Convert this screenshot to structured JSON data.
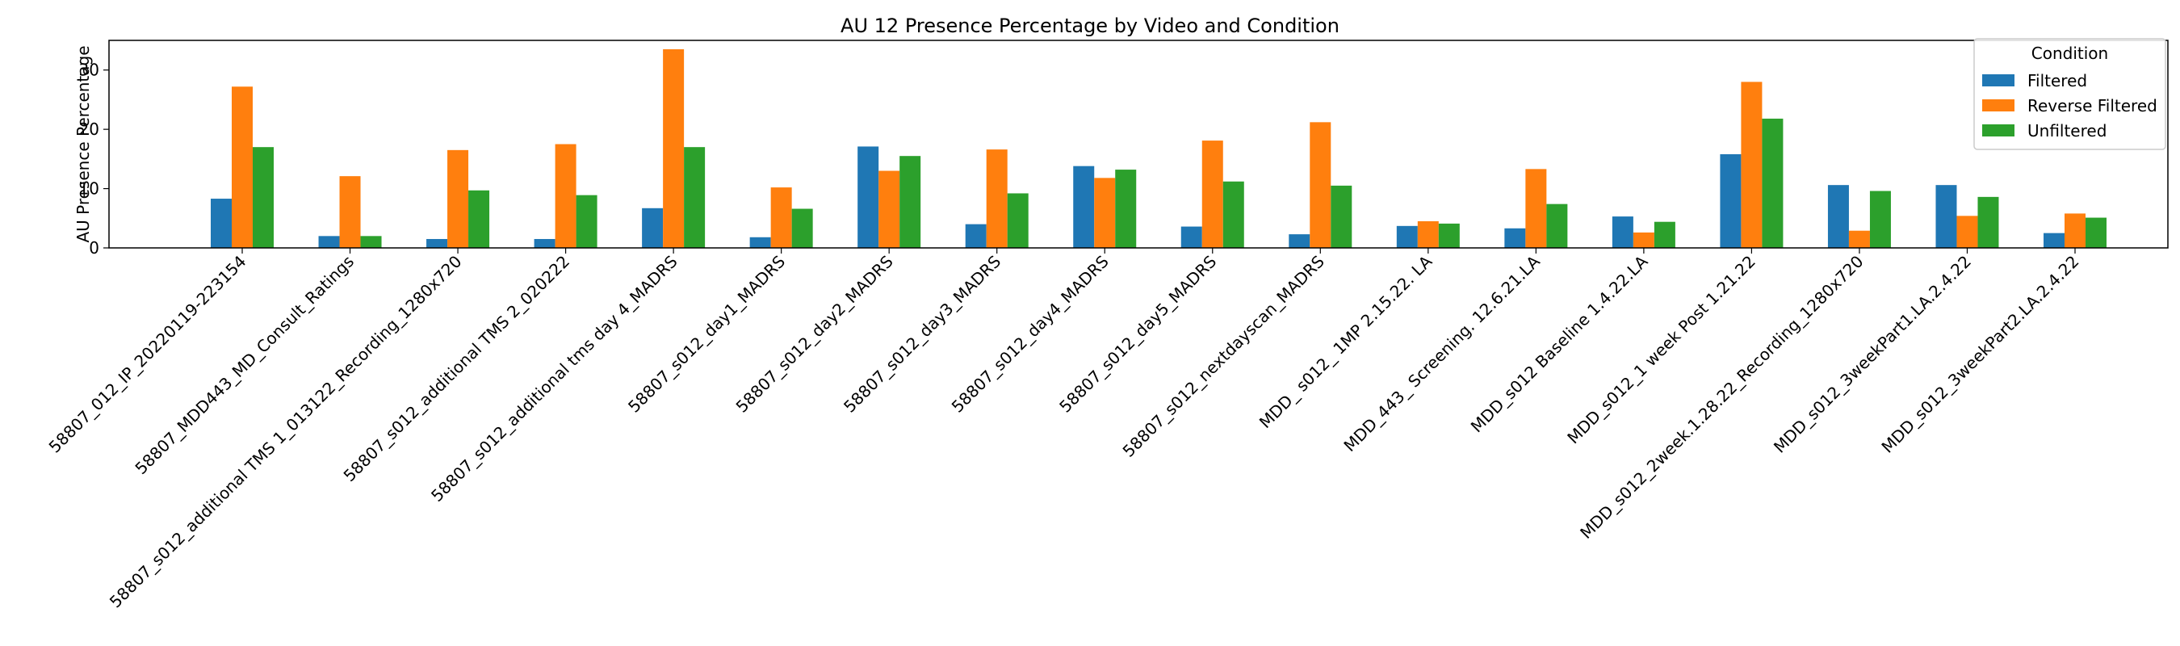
{
  "chart_data": {
    "type": "bar",
    "title": "AU 12 Presence Percentage by Video and Condition",
    "xlabel": "",
    "ylabel": "AU Presence Percentage",
    "ylim": [
      0,
      35
    ],
    "yticks": [
      0,
      10,
      20,
      30
    ],
    "grid": false,
    "legend": {
      "title": "Condition",
      "placement": "top-right"
    },
    "categories": [
      "58807_012_IP_20220119-223154",
      "58807_MDD443_MD_Consult_Ratings",
      "58807_s012_additional TMS 1_013122_Recording_1280x720",
      "58807_s012_additional TMS 2_020222",
      "58807_s012_additional tms day 4_MADRS",
      "58807_s012_day1_MADRS",
      "58807_s012_day2_MADRS",
      "58807_s012_day3_MADRS",
      "58807_s012_day4_MADRS",
      "58807_s012_day5_MADRS",
      "58807_s012_nextdayscan_MADRS",
      "MDD_ s012_ 1MP  2.15.22. LA",
      "MDD_443_ Screening. 12.6.21.LA",
      "MDD_s012 Baseline 1.4.22.LA",
      "MDD_s012_1 week Post 1.21.22",
      "MDD_s012_2week.1.28.22_Recording_1280x720",
      "MDD_s012_3weekPart1.LA.2.4.22",
      "MDD_s012_3weekPart2.LA.2.4.22"
    ],
    "series": [
      {
        "name": "Filtered",
        "color": "#1f77b4",
        "values": [
          8.3,
          2.0,
          1.5,
          1.5,
          6.7,
          1.8,
          17.1,
          4.0,
          13.8,
          3.6,
          2.3,
          3.7,
          3.3,
          5.3,
          15.8,
          10.6,
          10.6,
          2.5
        ]
      },
      {
        "name": "Reverse Filtered",
        "color": "#ff7f0e",
        "values": [
          27.2,
          12.1,
          16.5,
          17.5,
          33.5,
          10.2,
          13.0,
          16.6,
          11.8,
          18.1,
          21.2,
          4.5,
          13.3,
          2.6,
          28.0,
          2.9,
          5.4,
          5.8
        ]
      },
      {
        "name": "Unfiltered",
        "color": "#2ca02c",
        "values": [
          17.0,
          2.0,
          9.7,
          8.9,
          17.0,
          6.6,
          15.5,
          9.2,
          13.2,
          11.2,
          10.5,
          4.1,
          7.4,
          4.4,
          21.8,
          9.6,
          8.6,
          5.1
        ]
      }
    ]
  }
}
